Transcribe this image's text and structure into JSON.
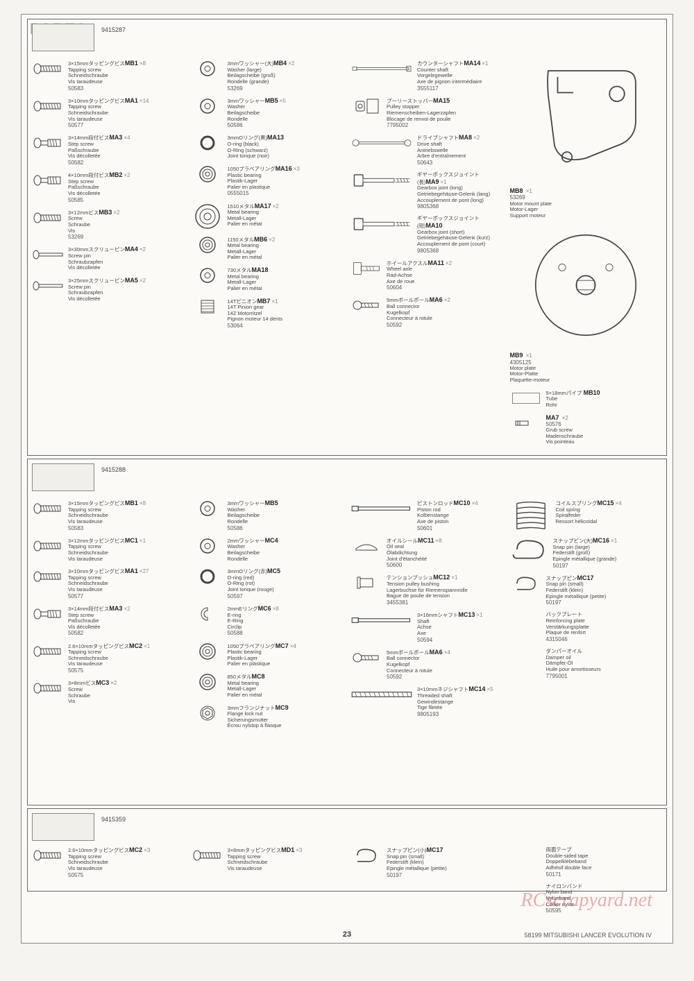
{
  "header": "PARTS",
  "page_number": "23",
  "footer_right": "58199 MITSUBISHI LANCER EVOLUTION IV",
  "watermark": "RCscrapyard.net",
  "section_a": {
    "bag_code": "9415287",
    "col1": [
      {
        "code": "MB1",
        "qty": "×8",
        "num": "50583",
        "jp": "3×15mmタッピングビス",
        "desc": [
          "Tapping screw",
          "Schneidschraube",
          "Vis taraudeuse"
        ],
        "icon": "screw"
      },
      {
        "code": "MA1",
        "qty": "×14",
        "num": "50577",
        "jp": "3×10mmタッピングビス",
        "desc": [
          "Tapping screw",
          "Schneidschraube",
          "Vis taraudeuse"
        ],
        "icon": "screw"
      },
      {
        "code": "MA3",
        "qty": "×4",
        "num": "50582",
        "jp": "3×14mm段付ビス",
        "desc": [
          "Step screw",
          "Paßschraube",
          "Vis décolletée"
        ],
        "icon": "stepscrew"
      },
      {
        "code": "MB2",
        "qty": "×2",
        "num": "50585",
        "jp": "4×10mm段付ビス",
        "desc": [
          "Step screw",
          "Paßschraube",
          "Vis décolletée"
        ],
        "icon": "stepscrew"
      },
      {
        "code": "MB3",
        "qty": "×2",
        "num": "53269",
        "jp": "3×12mmビス",
        "desc": [
          "Screw",
          "Schraube",
          "Vis"
        ],
        "icon": "screw"
      },
      {
        "code": "MA4",
        "qty": "×2",
        "num": "",
        "jp": "3×30mmスクリューピン",
        "desc": [
          "Screw pin",
          "Schraubzapfen",
          "Vis décolletée"
        ],
        "icon": "pin"
      },
      {
        "code": "MA5",
        "qty": "×2",
        "num": "",
        "jp": "3×25mmスクリューピン",
        "desc": [
          "Screw pin",
          "Schraubzapfen",
          "Vis décolletée"
        ],
        "icon": "pin"
      }
    ],
    "col2": [
      {
        "code": "MB4",
        "qty": "×2",
        "num": "53269",
        "jp": "3mmワッシャー(大)",
        "desc": [
          "Washer (large)",
          "Beilagscheibe (groß)",
          "Rondelle (grande)"
        ],
        "icon": "washer"
      },
      {
        "code": "MB5",
        "qty": "×5",
        "num": "50586",
        "jp": "3mmワッシャー",
        "desc": [
          "Washer",
          "Beilagscheibe",
          "Rondelle"
        ],
        "icon": "washer"
      },
      {
        "code": "MA13",
        "qty": "",
        "num": "",
        "jp": "3mmOリング(黒)",
        "desc": [
          "O-ring (black)",
          "O-Ring (schwarz)",
          "Joint torique (noir)"
        ],
        "icon": "oring"
      },
      {
        "code": "MA16",
        "qty": "×3",
        "num": "0555015",
        "jp": "1050プラベアリング",
        "desc": [
          "Plastic bearing",
          "Plastik-Lager",
          "Palier en plastique"
        ],
        "icon": "bearing"
      },
      {
        "code": "MA17",
        "qty": "×2",
        "num": "",
        "jp": "1510メタル",
        "desc": [
          "Metal bearing",
          "Metall-Lager",
          "Palier en métal"
        ],
        "icon": "bearing-lg"
      },
      {
        "code": "MB6",
        "qty": "×2",
        "num": "",
        "jp": "1150メタル",
        "desc": [
          "Metal bearing",
          "Metall-Lager",
          "Palier en métal"
        ],
        "icon": "bearing"
      },
      {
        "code": "MA18",
        "qty": "",
        "num": "",
        "jp": "730メタル",
        "desc": [
          "Metal bearing",
          "Metall-Lager",
          "Palier en métal"
        ],
        "icon": "washer"
      },
      {
        "code": "MB7",
        "qty": "×1",
        "num": "53064",
        "jp": "14Tピニオン",
        "desc": [
          "14T Pinion gear",
          "14Z Motorritzel",
          "Pignon moteur 14 dents"
        ],
        "icon": "pinion"
      }
    ],
    "col3": [
      {
        "code": "MA14",
        "qty": "×1",
        "num": "3555117",
        "jp": "カウンターシャフト",
        "desc": [
          "Counter shaft",
          "Vorgelegewelle",
          "Axe de pignon intermédiaire"
        ],
        "icon": "shaft"
      },
      {
        "code": "MA15",
        "qty": "",
        "num": "7795002",
        "jp": "プーリーストッパー",
        "desc": [
          "Pulley stopper",
          "Riemenscheiben-Lagerzapfen",
          "Blocage de renvoi de poulie"
        ],
        "icon": "stopper"
      },
      {
        "code": "MA8",
        "qty": "×2",
        "num": "50643",
        "jp": "ドライブシャフト",
        "desc": [
          "Drive shaft",
          "Antriebswelle",
          "Arbre d'entraînement"
        ],
        "icon": "driveshaft"
      },
      {
        "code": "MA9",
        "qty": "×1",
        "num": "9805368",
        "jp": "ギヤーボックスジョイント(長)",
        "desc": [
          "Gearbox joint (long)",
          "Getriebegehäuse-Gelenk (lang)",
          "Accouplement de pont (long)"
        ],
        "icon": "joint"
      },
      {
        "code": "MA10",
        "qty": "",
        "num": "9805368",
        "jp": "ギヤーボックスジョイント(短)",
        "desc": [
          "Gearbox joint (short)",
          "Getriebegehäuse-Gelenk (kurz)",
          "Accouplement de pont (court)"
        ],
        "icon": "joint"
      },
      {
        "code": "MA11",
        "qty": "×2",
        "num": "50604",
        "jp": "ホイールアクスル",
        "desc": [
          "Wheel axle",
          "Rad-Achse",
          "Axe de roue"
        ],
        "icon": "axle"
      },
      {
        "code": "MA6",
        "qty": "×2",
        "num": "50592",
        "jp": "5mmボールポール",
        "desc": [
          "Ball connector",
          "Kugelkopf",
          "Connecteur à rotule"
        ],
        "icon": "ball"
      }
    ],
    "col4_top": {
      "code": "MB8",
      "qty": "×1",
      "num": "53269",
      "desc": [
        "Motor mount plate",
        "Motor-Lager",
        "Support moteur"
      ]
    },
    "col4_mid": {
      "code": "MB9",
      "qty": "×1",
      "num": "4305125",
      "desc": [
        "Motor plate",
        "Motor-Platte",
        "Plaquette-moteur"
      ]
    },
    "col4_bot1": {
      "code": "MB10",
      "qty": "×1",
      "jp": "5×18mmパイプ",
      "desc": [
        "Tube",
        "Rohr"
      ]
    },
    "col4_bot2": {
      "code": "MA7",
      "qty": "×2",
      "num": "50576",
      "jp": "3mmイモネジ",
      "desc": [
        "Grub screw",
        "Madenschraube",
        "Vis pointeau"
      ]
    }
  },
  "section_b": {
    "bag_code": "9415288",
    "col1": [
      {
        "code": "MB1",
        "qty": "×8",
        "num": "50583",
        "jp": "3×15mmタッピングビス",
        "desc": [
          "Tapping screw",
          "Schneidschraube",
          "Vis taraudeuse"
        ],
        "icon": "screw"
      },
      {
        "code": "MC1",
        "qty": "×1",
        "num": "",
        "jp": "3×12mmタッピングビス",
        "desc": [
          "Tapping screw",
          "Schneidschraube",
          "Vis taraudeuse"
        ],
        "icon": "screw"
      },
      {
        "code": "MA1",
        "qty": "×27",
        "num": "50577",
        "jp": "3×10mmタッピングビス",
        "desc": [
          "Tapping screw",
          "Schneidschraube",
          "Vis taraudeuse"
        ],
        "icon": "screw"
      },
      {
        "code": "MA3",
        "qty": "×2",
        "num": "50582",
        "jp": "3×14mm段付ビス",
        "desc": [
          "Step screw",
          "Paßschraube",
          "Vis décolletée"
        ],
        "icon": "stepscrew"
      },
      {
        "code": "MC2",
        "qty": "×1",
        "num": "50575",
        "jp": "2.6×10mmタッピングビス",
        "desc": [
          "Tapping screw",
          "Schneidschraube",
          "Vis taraudeuse"
        ],
        "icon": "screw"
      },
      {
        "code": "MC3",
        "qty": "×2",
        "num": "",
        "jp": "3×8mmビス",
        "desc": [
          "Screw",
          "Schraube",
          "Vis"
        ],
        "icon": "screw"
      }
    ],
    "col2": [
      {
        "code": "MB5",
        "qty": "",
        "num": "50586",
        "jp": "3mmワッシャー",
        "desc": [
          "Washer",
          "Beilagscheibe",
          "Rondelle"
        ],
        "icon": "washer"
      },
      {
        "code": "MC4",
        "qty": "",
        "num": "",
        "jp": "2mmワッシャー",
        "desc": [
          "Washer",
          "Beilagscheibe",
          "Rondelle"
        ],
        "icon": "washer"
      },
      {
        "code": "MC5",
        "qty": "",
        "num": "50597",
        "jp": "3mmOリング(赤)",
        "desc": [
          "O-ring (red)",
          "O-Ring (rot)",
          "Joint torique (rouge)"
        ],
        "icon": "oring"
      },
      {
        "code": "MC6",
        "qty": "×8",
        "num": "50588",
        "jp": "2mmEリング",
        "desc": [
          "E-ring",
          "E-Ring",
          "Circlip"
        ],
        "icon": "ering"
      },
      {
        "code": "MC7",
        "qty": "×4",
        "num": "",
        "jp": "1050プラベアリング",
        "desc": [
          "Plastic bearing",
          "Plastik-Lager",
          "Palier en plastique"
        ],
        "icon": "bearing"
      },
      {
        "code": "MC8",
        "qty": "",
        "num": "",
        "jp": "850メタル",
        "desc": [
          "Metal bearing",
          "Metall-Lager",
          "Palier en métal"
        ],
        "icon": "bearing"
      },
      {
        "code": "MC9",
        "qty": "",
        "num": "",
        "jp": "3mmフランジナット",
        "desc": [
          "Flange lock nut",
          "Sicherungsmutter",
          "Écrou nylstop à flasque"
        ],
        "icon": "nut"
      }
    ],
    "col3": [
      {
        "code": "MC10",
        "qty": "×4",
        "num": "50601",
        "jp": "ピストンロッド",
        "desc": [
          "Piston rod",
          "Kolbenstange",
          "Axe de piston"
        ],
        "icon": "rod"
      },
      {
        "code": "MC11",
        "qty": "×8",
        "num": "50600",
        "jp": "オイルシール",
        "desc": [
          "Oil seal",
          "Ölabdichtung",
          "Joint d'étanchéité"
        ],
        "icon": "seal"
      },
      {
        "code": "MC12",
        "qty": "×1",
        "num": "3455381",
        "jp": "テンションプッシュ",
        "desc": [
          "Tension pulley bushing",
          "Lagerbuchse für Riemenspannrolle",
          "Bague de poulie de tension"
        ],
        "icon": "bushing"
      },
      {
        "code": "MC13",
        "qty": "×1",
        "num": "50594",
        "jp": "3×16mmシャフト",
        "desc": [
          "Shaft",
          "Achse",
          "Axe"
        ],
        "icon": "rod"
      },
      {
        "code": "MA6",
        "qty": "×4",
        "num": "50592",
        "jp": "5mmボールポール",
        "desc": [
          "Ball connector",
          "Kugelkopf",
          "Connecteur à rotule"
        ],
        "icon": "ball"
      },
      {
        "code": "MC14",
        "qty": "×5",
        "num": "9805193",
        "jp": "3×10mmネジシャフト",
        "desc": [
          "Threaded shaft",
          "Gewindestange",
          "Tige filetée"
        ],
        "icon": "thread"
      }
    ],
    "col4": [
      {
        "code": "MC15",
        "qty": "×4",
        "num": "",
        "jp": "コイルスプリング",
        "desc": [
          "Coil spring",
          "Spiralfeder",
          "Ressort hélicoïdal"
        ],
        "icon": "spring"
      },
      {
        "code": "MC16",
        "qty": "×1",
        "num": "50197",
        "jp": "スナップピン(大)",
        "desc": [
          "Snap pin (large)",
          "Federstift (groß)",
          "Epingle métallique (grande)"
        ],
        "icon": "snap"
      },
      {
        "code": "MC17",
        "qty": "",
        "num": "50197",
        "jp": "スナップピン",
        "desc": [
          "Snap pin (small)",
          "Federstift (klein)",
          "Epingle métallique (petite)"
        ],
        "icon": "snap-sm"
      },
      {
        "code": "",
        "qty": "",
        "num": "4315046",
        "jp": "バックプレート",
        "desc": [
          "Reinforcing plate",
          "Verstärkungsplatte",
          "Plaque de renfort"
        ],
        "icon": "none"
      },
      {
        "code": "",
        "qty": "",
        "num": "7795001",
        "jp": "ダンパーオイル",
        "desc": [
          "Damper oil",
          "Dämpfer-Öl",
          "Huile pour amortisseurs"
        ],
        "icon": "none"
      }
    ]
  },
  "section_c": {
    "bag_code": "9415359",
    "items": [
      {
        "code": "MC2",
        "qty": "×3",
        "num": "50575",
        "jp": "2.6×10mmタッピングビス",
        "desc": [
          "Tapping screw",
          "Schneidschraube",
          "Vis taraudeuse"
        ],
        "icon": "screw"
      },
      {
        "code": "MD1",
        "qty": "×3",
        "num": "",
        "jp": "3×8mmタッピングビス",
        "desc": [
          "Tapping screw",
          "Schneidschraube",
          "Vis taraudeuse"
        ],
        "icon": "screw"
      },
      {
        "code": "MC17",
        "qty": "",
        "num": "50197",
        "jp": "スナップピン(小)",
        "desc": [
          "Snap pin (small)",
          "Federstift (klein)",
          "Epingle métallique (petite)"
        ],
        "icon": "snap-sm"
      },
      {
        "code": "",
        "qty": "",
        "num": "50171",
        "jp": "両面テープ",
        "desc": [
          "Double-sided tape",
          "Doppelklebeband",
          "Adhésif double face"
        ],
        "icon": "none"
      },
      {
        "code": "",
        "qty": "",
        "num": "50595",
        "jp": "ナイロンバンド",
        "desc": [
          "Nylon band",
          "Nylonband",
          "Collier nylon"
        ],
        "icon": "none"
      }
    ]
  }
}
